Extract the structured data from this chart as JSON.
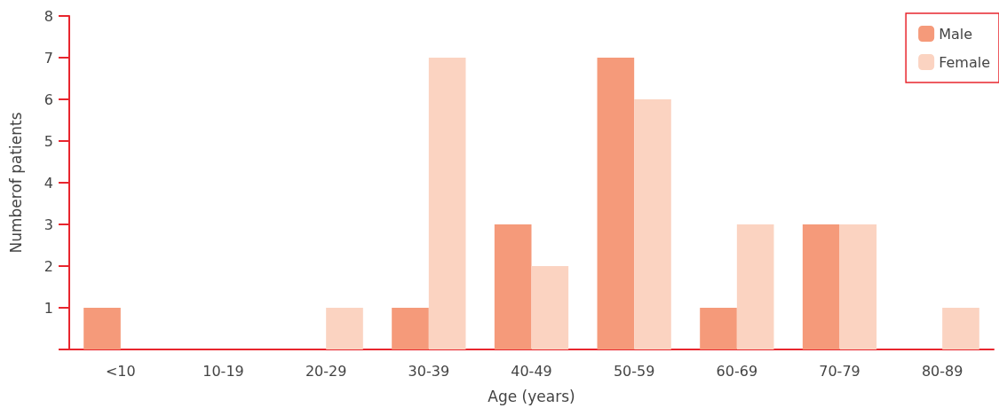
{
  "chart_data": {
    "type": "bar",
    "xlabel": "Age (years)",
    "ylabel": "Numberof patients",
    "categories": [
      "<10",
      "10-19",
      "20-29",
      "30-39",
      "40-49",
      "50-59",
      "60-69",
      "70-79",
      "80-89"
    ],
    "series": [
      {
        "name": "Male",
        "color": "#f59a7a",
        "values": [
          1,
          0,
          0,
          1,
          3,
          7,
          1,
          3,
          0
        ]
      },
      {
        "name": "Female",
        "color": "#fbd3c1",
        "values": [
          0,
          0,
          1,
          7,
          2,
          6,
          3,
          3,
          1
        ]
      }
    ],
    "ylim": [
      0,
      8
    ],
    "yticks": [
      {
        "value": 0,
        "label": null
      },
      1,
      2,
      3,
      4,
      5,
      6,
      7,
      8
    ],
    "grid": false,
    "legend": "top right"
  }
}
